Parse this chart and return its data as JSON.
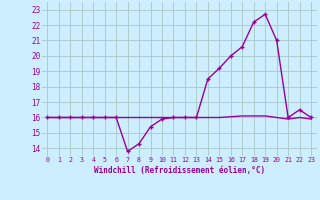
{
  "xlabel": "Windchill (Refroidissement éolien,°C)",
  "bg_color": "#cceeff",
  "grid_color": "#aacccc",
  "line_color": "#990099",
  "x_values": [
    0,
    1,
    2,
    3,
    4,
    5,
    6,
    7,
    8,
    9,
    10,
    11,
    12,
    13,
    14,
    15,
    16,
    17,
    18,
    19,
    20,
    21,
    22,
    23
  ],
  "windchill_values": [
    16.0,
    16.0,
    16.0,
    16.0,
    16.0,
    16.0,
    16.0,
    13.8,
    14.3,
    15.4,
    15.9,
    16.0,
    16.0,
    16.0,
    18.5,
    19.2,
    20.0,
    20.6,
    22.2,
    22.7,
    21.0,
    16.0,
    16.5,
    16.0
  ],
  "temp_values": [
    16.0,
    16.0,
    16.0,
    16.0,
    16.0,
    16.0,
    16.0,
    16.0,
    16.0,
    16.0,
    16.0,
    16.0,
    16.0,
    16.0,
    16.0,
    16.0,
    16.05,
    16.1,
    16.1,
    16.1,
    16.0,
    15.9,
    16.0,
    15.9
  ],
  "ylim": [
    13.5,
    23.5
  ],
  "xlim": [
    -0.5,
    23.5
  ],
  "yticks": [
    14,
    15,
    16,
    17,
    18,
    19,
    20,
    21,
    22,
    23
  ],
  "xticks": [
    0,
    1,
    2,
    3,
    4,
    5,
    6,
    7,
    8,
    9,
    10,
    11,
    12,
    13,
    14,
    15,
    16,
    17,
    18,
    19,
    20,
    21,
    22,
    23
  ],
  "figsize": [
    3.2,
    2.0
  ],
  "dpi": 100
}
